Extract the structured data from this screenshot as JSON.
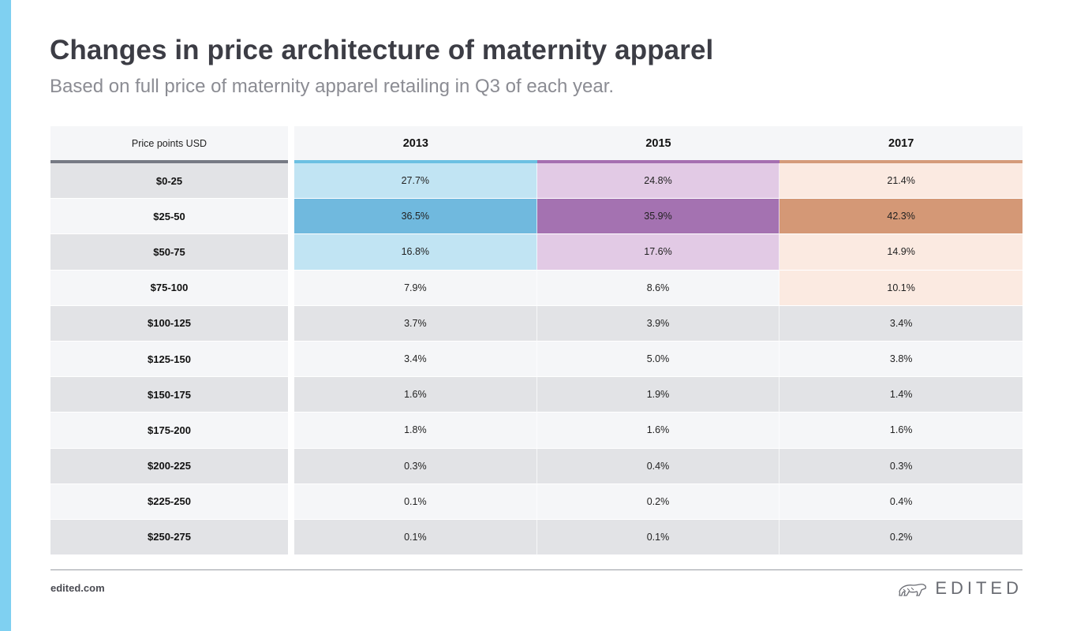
{
  "header": {
    "title": "Changes in price architecture of maternity apparel",
    "subtitle": "Based on full price of maternity apparel retailing in Q3 of each year."
  },
  "chart_data": {
    "type": "table",
    "row_header_label": "Price points USD",
    "columns": [
      "2013",
      "2015",
      "2017"
    ],
    "rows": [
      "$0-25",
      "$25-50",
      "$50-75",
      "$75-100",
      "$100-125",
      "$125-150",
      "$150-175",
      "$175-200",
      "$200-225",
      "$225-250",
      "$250-275"
    ],
    "series": [
      {
        "name": "2013",
        "values": [
          "27.7%",
          "36.5%",
          "16.8%",
          "7.9%",
          "3.7%",
          "3.4%",
          "1.6%",
          "1.8%",
          "0.3%",
          "0.1%",
          "0.1%"
        ]
      },
      {
        "name": "2015",
        "values": [
          "24.8%",
          "35.9%",
          "17.6%",
          "8.6%",
          "3.9%",
          "5.0%",
          "1.9%",
          "1.6%",
          "0.4%",
          "0.2%",
          "0.1%"
        ]
      },
      {
        "name": "2017",
        "values": [
          "21.4%",
          "42.3%",
          "14.9%",
          "10.1%",
          "3.4%",
          "3.8%",
          "1.4%",
          "1.6%",
          "0.3%",
          "0.4%",
          "0.2%"
        ]
      }
    ],
    "highlight": [
      {
        "column": "2013",
        "bar_color": "#6cc0e2",
        "strong_color": "#70b9de",
        "light_color": "#c1e4f3",
        "strong_rows": [
          1
        ],
        "light_rows": [
          0,
          2
        ]
      },
      {
        "column": "2015",
        "bar_color": "#a56fb0",
        "strong_color": "#a472b1",
        "light_color": "#e2cae5",
        "strong_rows": [
          1
        ],
        "light_rows": [
          0,
          2
        ]
      },
      {
        "column": "2017",
        "bar_color": "#d49b7a",
        "strong_color": "#d49876",
        "light_color": "#fbeae1",
        "strong_rows": [
          1
        ],
        "light_rows": [
          0,
          2,
          3
        ]
      }
    ]
  },
  "footer": {
    "url": "edited.com",
    "brand": "EDITED"
  }
}
